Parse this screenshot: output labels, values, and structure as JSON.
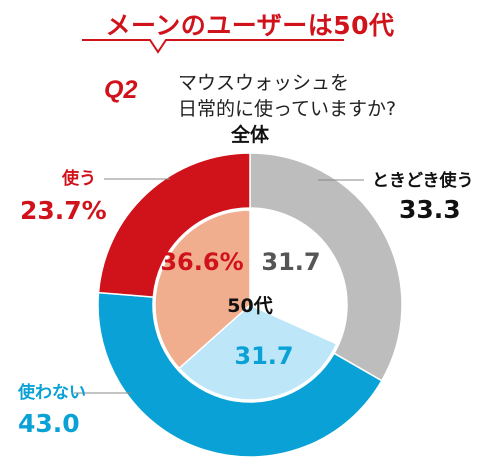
{
  "banner": {
    "text": "メーンのユーザーは50代"
  },
  "question": {
    "label": "Q2",
    "text_line1": "マウスウォッシュを",
    "text_line2": "日常的に使っていますか?"
  },
  "chart_data": [
    {
      "type": "pie",
      "title": "全体",
      "style": "donut",
      "categories": [
        "ときどき使う",
        "使わない",
        "使う"
      ],
      "values": [
        33.3,
        43.0,
        23.7
      ],
      "value_labels": [
        "33.3",
        "43.0",
        "23.7%"
      ],
      "colors": [
        "#bdbdbd",
        "#0aa2d6",
        "#d0121b"
      ],
      "label_colors": [
        "#111111",
        "#0aa2d6",
        "#d0121b"
      ]
    },
    {
      "type": "pie",
      "title": "50代",
      "style": "inner-pie",
      "categories": [
        "ときどき使う",
        "使わない",
        "使う"
      ],
      "values": [
        31.7,
        31.7,
        36.6
      ],
      "value_labels": [
        "31.7",
        "31.7",
        "36.6%"
      ],
      "colors": [
        "#ffffff",
        "#bde6f8",
        "#f1ae8e"
      ],
      "label_colors": [
        "#555555",
        "#0aa2d6",
        "#d0121b"
      ]
    }
  ]
}
